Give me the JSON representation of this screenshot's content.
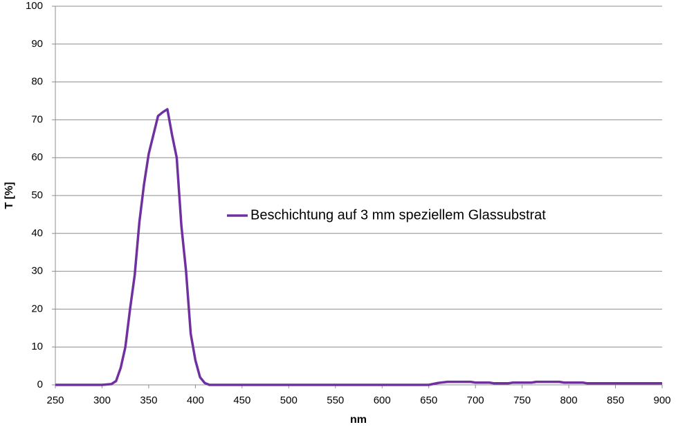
{
  "chart_data": {
    "type": "line",
    "x_label": "nm",
    "y_label": "T [%]",
    "x": [
      250,
      300,
      310,
      315,
      320,
      325,
      330,
      335,
      340,
      345,
      350,
      355,
      360,
      365,
      370,
      375,
      380,
      385,
      390,
      395,
      400,
      405,
      410,
      415,
      650,
      660,
      670,
      695,
      700,
      715,
      720,
      735,
      740,
      760,
      765,
      790,
      795,
      815,
      820,
      900
    ],
    "series": [
      {
        "name": "Beschichtung auf 3 mm speziellem Glassubstrat",
        "color": "#7030a0",
        "values": [
          0,
          0,
          0.2,
          1,
          4.5,
          10,
          20,
          29,
          43,
          53,
          61,
          66,
          71,
          72,
          72.8,
          66,
          60,
          42,
          30,
          13.5,
          6.5,
          2,
          0.5,
          0,
          0,
          0.5,
          0.8,
          0.8,
          0.6,
          0.6,
          0.4,
          0.4,
          0.6,
          0.6,
          0.8,
          0.8,
          0.6,
          0.6,
          0.4,
          0.4
        ]
      }
    ],
    "xlim": [
      250,
      900
    ],
    "xticks": [
      250,
      300,
      350,
      400,
      450,
      500,
      550,
      600,
      650,
      700,
      750,
      800,
      850,
      900
    ],
    "ylim": [
      0,
      100
    ],
    "yticks": [
      0,
      10,
      20,
      30,
      40,
      50,
      60,
      70,
      80,
      90,
      100
    ],
    "grid": true,
    "legend_position": "center"
  }
}
